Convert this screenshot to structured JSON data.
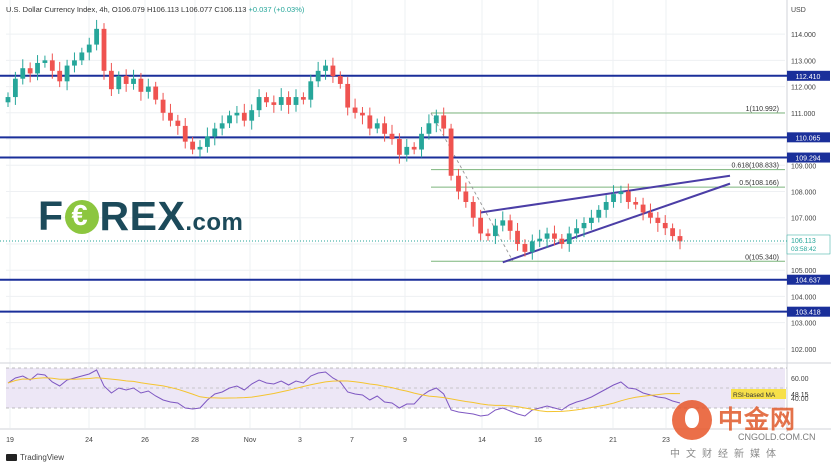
{
  "header": {
    "symbol": "U.S. Dollar Currency Index, 4h,",
    "open": "O106.079",
    "high": "H106.113",
    "low": "L106.077",
    "close": "C106.113",
    "change": "+0.037 (+0.03%)"
  },
  "footer": {
    "brand": "TradingView"
  },
  "logo": {
    "brand": "FOREX",
    "suffix": ".com"
  },
  "watermark": {
    "brand": "中金网",
    "site": "CNGOLD.COM.CN",
    "sub": "中文财经新媒体"
  },
  "chart_data": {
    "type": "line",
    "title": "",
    "currency": "USD",
    "ylim": [
      101.5,
      115.3
    ],
    "y_ticks": [
      {
        "v": 114,
        "label": "114.000"
      },
      {
        "v": 113,
        "label": "113.000"
      },
      {
        "v": 112,
        "label": "112.000"
      },
      {
        "v": 111,
        "label": "111.000"
      },
      {
        "v": 110,
        "label": "110.000"
      },
      {
        "v": 109,
        "label": "109.000"
      },
      {
        "v": 108,
        "label": "108.000"
      },
      {
        "v": 107,
        "label": "107.000"
      },
      {
        "v": 106,
        "label": "106.000"
      },
      {
        "v": 105,
        "label": "105.000"
      },
      {
        "v": 104,
        "label": "104.000"
      },
      {
        "v": 103,
        "label": "103.000"
      },
      {
        "v": 102,
        "label": "102.000"
      }
    ],
    "x_ticks": [
      "19",
      "24",
      "26",
      "28",
      "Nov",
      "3",
      "7",
      "9",
      "14",
      "16",
      "21",
      "23"
    ],
    "close_prices": [
      111.6,
      112.3,
      112.7,
      112.5,
      112.9,
      113.0,
      112.6,
      112.2,
      112.8,
      113.0,
      113.3,
      113.6,
      114.2,
      112.6,
      111.9,
      112.4,
      112.1,
      112.3,
      111.8,
      112.0,
      111.5,
      111.0,
      110.7,
      110.5,
      109.9,
      109.6,
      109.7,
      110.1,
      110.4,
      110.6,
      110.9,
      111.0,
      110.7,
      111.1,
      111.6,
      111.4,
      111.3,
      111.6,
      111.3,
      111.6,
      111.5,
      112.2,
      112.6,
      112.8,
      112.4,
      112.1,
      111.2,
      111.0,
      110.9,
      110.4,
      110.6,
      110.2,
      110.0,
      109.4,
      109.7,
      109.6,
      110.2,
      110.6,
      110.9,
      110.4,
      108.6,
      108.0,
      107.6,
      107.0,
      106.4,
      106.3,
      106.7,
      106.9,
      106.5,
      106.0,
      105.7,
      106.1,
      106.2,
      106.4,
      106.2,
      106.0,
      106.4,
      106.6,
      106.8,
      107.0,
      107.3,
      107.6,
      107.9,
      108.0,
      107.6,
      107.5,
      107.2,
      107.0,
      106.8,
      106.6,
      106.3,
      106.1
    ],
    "last_price": {
      "value": 106.113,
      "label": "106.113",
      "countdown": "03:58:42"
    },
    "horizontal_levels": [
      {
        "value": 112.41,
        "label": "112.410"
      },
      {
        "value": 110.065,
        "label": "110.065"
      },
      {
        "value": 109.294,
        "label": "109.294"
      },
      {
        "value": 104.637,
        "label": "104.637"
      },
      {
        "value": 103.418,
        "label": "103.418"
      }
    ],
    "fibonacci": [
      {
        "ratio": "1",
        "value": 110.992,
        "label": "1(110.992)"
      },
      {
        "ratio": "0.618",
        "value": 108.833,
        "label": "0.618(108.833)"
      },
      {
        "ratio": "0.5",
        "value": 108.166,
        "label": "0.5(108.166)"
      },
      {
        "ratio": "0",
        "value": 105.34,
        "label": "0(105.340)"
      }
    ],
    "channel": {
      "upper": [
        {
          "bar": 64,
          "value": 107.2
        },
        {
          "bar": 91,
          "value": 108.6
        }
      ],
      "lower": [
        {
          "bar": 67,
          "value": 105.3
        },
        {
          "bar": 91,
          "value": 108.3
        }
      ]
    },
    "rsi": {
      "ylim": [
        20,
        70
      ],
      "ticks": [
        {
          "v": 60,
          "label": "60.00"
        },
        {
          "v": 40,
          "label": "40.00"
        }
      ],
      "overbought": 70,
      "oversold": 30,
      "ma_label": "RSI-based MA",
      "ma_value": "48.15",
      "values": [
        55,
        60,
        62,
        58,
        64,
        63,
        56,
        52,
        58,
        60,
        62,
        64,
        68,
        52,
        45,
        50,
        48,
        50,
        45,
        47,
        42,
        38,
        36,
        35,
        30,
        29,
        30,
        38,
        44,
        46,
        50,
        52,
        48,
        54,
        58,
        55,
        54,
        57,
        53,
        57,
        55,
        62,
        65,
        66,
        60,
        56,
        46,
        44,
        43,
        38,
        42,
        36,
        35,
        30,
        34,
        34,
        42,
        47,
        50,
        44,
        28,
        26,
        25,
        24,
        22,
        23,
        28,
        30,
        27,
        24,
        22,
        28,
        30,
        32,
        30,
        28,
        33,
        36,
        38,
        41,
        45,
        49,
        53,
        56,
        50,
        49,
        45,
        43,
        41,
        40,
        37,
        35
      ]
    }
  }
}
